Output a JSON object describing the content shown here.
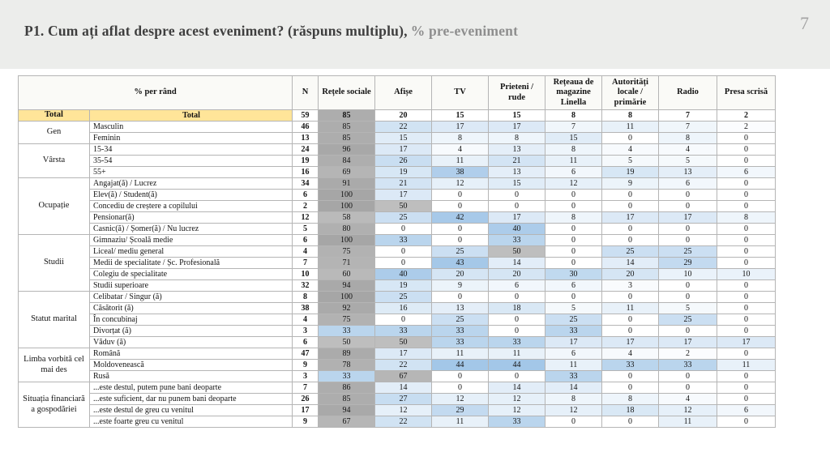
{
  "slide": {
    "title_main": "P1. Cum ați aflat despre acest eveniment? (răspuns multiplu),",
    "title_suffix": "% pre-eveniment",
    "page_number": "7"
  },
  "colors": {
    "title_band": "#ecedeb",
    "total_highlight": "#ffe599",
    "heat_blue": "#9dc3e6",
    "heat_gray": "#a6a6a6",
    "border": "#b5b5b5"
  },
  "chart_data": {
    "type": "table",
    "row_header_label": "% per rând",
    "columns": [
      "N",
      "Rețele sociale",
      "Afișe",
      "TV",
      "Prieteni / rude",
      "Rețeaua de magazine Linella",
      "Autorități locale / primărie",
      "Radio",
      "Presa scrisă"
    ],
    "groups": [
      {
        "label": "Total",
        "total": true,
        "rows": [
          {
            "label": "Total",
            "values": [
              59,
              85,
              20,
              15,
              15,
              8,
              8,
              7,
              2
            ]
          }
        ]
      },
      {
        "label": "Gen",
        "rows": [
          {
            "label": "Masculin",
            "values": [
              46,
              85,
              22,
              17,
              17,
              7,
              11,
              7,
              2
            ]
          },
          {
            "label": "Feminin",
            "values": [
              13,
              85,
              15,
              8,
              8,
              15,
              0,
              8,
              0
            ]
          }
        ]
      },
      {
        "label": "Vârsta",
        "rows": [
          {
            "label": "15-34",
            "values": [
              24,
              96,
              17,
              4,
              13,
              8,
              4,
              4,
              0
            ]
          },
          {
            "label": "35-54",
            "values": [
              19,
              84,
              26,
              11,
              21,
              11,
              5,
              5,
              0
            ]
          },
          {
            "label": "55+",
            "values": [
              16,
              69,
              19,
              38,
              13,
              6,
              19,
              13,
              6
            ]
          }
        ]
      },
      {
        "label": "Ocupație",
        "rows": [
          {
            "label": "Angajat(ă) / Lucrez",
            "values": [
              34,
              91,
              21,
              12,
              15,
              12,
              9,
              6,
              0
            ]
          },
          {
            "label": "Elev(ă) / Student(ă)",
            "values": [
              6,
              100,
              17,
              0,
              0,
              0,
              0,
              0,
              0
            ]
          },
          {
            "label": "Concediu de creștere a copilului",
            "values": [
              2,
              100,
              50,
              0,
              0,
              0,
              0,
              0,
              0
            ]
          },
          {
            "label": "Pensionar(ă)",
            "values": [
              12,
              58,
              25,
              42,
              17,
              8,
              17,
              17,
              8
            ]
          },
          {
            "label": "Casnic(ă) / Șomer(ă) / Nu lucrez",
            "values": [
              5,
              80,
              0,
              0,
              40,
              0,
              0,
              0,
              0
            ]
          }
        ]
      },
      {
        "label": "Studii",
        "rows": [
          {
            "label": "Gimnaziu/ Școală medie",
            "values": [
              6,
              100,
              33,
              0,
              33,
              0,
              0,
              0,
              0
            ]
          },
          {
            "label": "Liceal/ mediu general",
            "values": [
              4,
              75,
              0,
              25,
              50,
              0,
              25,
              25,
              0
            ]
          },
          {
            "label": "Medii de specialitate / Șc. Profesională",
            "values": [
              7,
              71,
              0,
              43,
              14,
              0,
              14,
              29,
              0
            ]
          },
          {
            "label": "Colegiu de specialitate",
            "values": [
              10,
              60,
              40,
              20,
              20,
              30,
              20,
              10,
              10
            ]
          },
          {
            "label": "Studii superioare",
            "values": [
              32,
              94,
              19,
              9,
              6,
              6,
              3,
              0,
              0
            ]
          }
        ]
      },
      {
        "label": "Statut marital",
        "rows": [
          {
            "label": "Celibatar / Singur (ă)",
            "values": [
              8,
              100,
              25,
              0,
              0,
              0,
              0,
              0,
              0
            ]
          },
          {
            "label": "Căsătorit (ă)",
            "values": [
              38,
              92,
              16,
              13,
              18,
              5,
              11,
              5,
              0
            ]
          },
          {
            "label": "În concubinaj",
            "values": [
              4,
              75,
              0,
              25,
              0,
              25,
              0,
              25,
              0
            ]
          },
          {
            "label": "Divorțat (ă)",
            "values": [
              3,
              33,
              33,
              33,
              0,
              33,
              0,
              0,
              0
            ]
          },
          {
            "label": "Văduv (ă)",
            "values": [
              6,
              50,
              50,
              33,
              33,
              17,
              17,
              17,
              17
            ]
          }
        ]
      },
      {
        "label": "Limba vorbită cel mai des",
        "rows": [
          {
            "label": "Română",
            "values": [
              47,
              89,
              17,
              11,
              11,
              6,
              4,
              2,
              0
            ]
          },
          {
            "label": "Moldovenească",
            "values": [
              9,
              78,
              22,
              44,
              44,
              11,
              33,
              33,
              11
            ]
          },
          {
            "label": "Rusă",
            "values": [
              3,
              33,
              67,
              0,
              0,
              33,
              0,
              0,
              0
            ]
          }
        ]
      },
      {
        "label": "Situația financiară a gospodăriei",
        "rows": [
          {
            "label": "...este destul, putem pune bani deoparte",
            "values": [
              7,
              86,
              14,
              0,
              14,
              14,
              0,
              0,
              0
            ]
          },
          {
            "label": "...este suficient, dar nu punem bani deoparte",
            "values": [
              26,
              85,
              27,
              12,
              12,
              8,
              8,
              4,
              0
            ]
          },
          {
            "label": "...este destul de greu cu venitul",
            "values": [
              17,
              94,
              12,
              29,
              12,
              12,
              18,
              12,
              6
            ]
          },
          {
            "label": "...este foarte greu cu venitul",
            "values": [
              9,
              67,
              22,
              11,
              33,
              0,
              0,
              11,
              0
            ]
          }
        ]
      }
    ]
  }
}
